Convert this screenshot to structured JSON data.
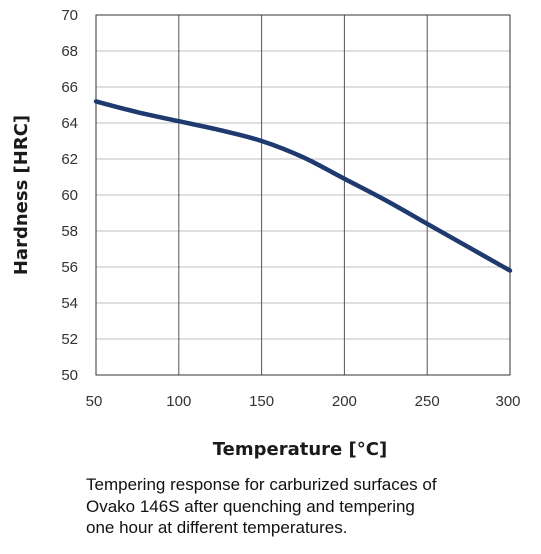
{
  "chart_data": {
    "type": "line",
    "title": "",
    "xlabel": "Temperature [°C]",
    "ylabel": "Hardness [HRC]",
    "xlim": [
      50,
      300
    ],
    "ylim": [
      50,
      70
    ],
    "x_ticks": [
      50,
      100,
      150,
      200,
      250,
      300
    ],
    "y_ticks": [
      50,
      52,
      54,
      56,
      58,
      60,
      62,
      64,
      66,
      68,
      70
    ],
    "grid": {
      "vertical": true,
      "horizontal": true
    },
    "series": [
      {
        "x": [
          50,
          75,
          100,
          125,
          150,
          175,
          200,
          225,
          250,
          275,
          300
        ],
        "y": [
          65.2,
          64.6,
          64.1,
          63.6,
          63.0,
          62.1,
          60.9,
          59.7,
          58.4,
          57.1,
          55.8
        ],
        "color": "#1f3a6e"
      }
    ]
  },
  "caption": {
    "lines": [
      "Tempering response for carburized surfaces of",
      "Ovako 146S after quenching and tempering",
      "one hour at different temperatures."
    ]
  }
}
